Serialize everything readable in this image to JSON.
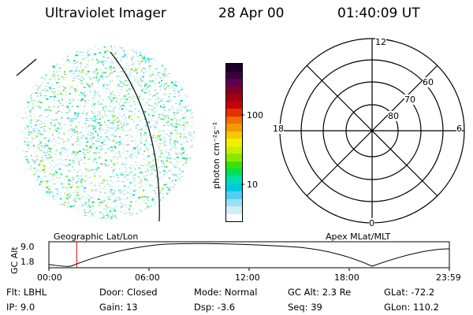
{
  "header": {
    "instrument": "Ultraviolet Imager",
    "date": "28 Apr 00",
    "time": "01:40:09 UT"
  },
  "colorbar": {
    "unit_label": "photon cm⁻²s⁻¹",
    "ticks": [
      "100",
      "10"
    ],
    "colors": [
      "#1a0028",
      "#3a0040",
      "#600050",
      "#800028",
      "#a00010",
      "#c80010",
      "#e43000",
      "#f07000",
      "#f49a00",
      "#f6c800",
      "#f4ef00",
      "#c6f000",
      "#8ce800",
      "#3ee000",
      "#00e05a",
      "#00dcb4",
      "#00c8e0",
      "#50d0f0",
      "#9ae0f4",
      "#d0eef6",
      "#ffffff"
    ]
  },
  "polar_grid": {
    "mlt_labels": [
      "12",
      "18",
      "6",
      "0"
    ],
    "lat_labels": [
      "60",
      "70",
      "80"
    ]
  },
  "timeline": {
    "left_title": "Geographic Lat/Lon",
    "right_title": "Apex MLat/MLT",
    "y_axis_label": "GC Alt",
    "y_ticks": [
      "9.0",
      "1.8"
    ],
    "x_ticks": [
      "00:00",
      "06:00",
      "12:00",
      "18:00",
      "23:59"
    ],
    "marker_time": "01:40",
    "marker_color": "#cc0000"
  },
  "meta": {
    "row1": [
      "Flt: LBHL",
      "Door: Closed",
      "Mode: Normal",
      "GC Alt: 2.3 Re",
      "GLat: -72.2"
    ],
    "row2": [
      "IP:  9.0",
      "Gain: 13",
      "Dsp:    -3.6",
      "Seq: 39",
      "GLon: 110.2"
    ]
  }
}
